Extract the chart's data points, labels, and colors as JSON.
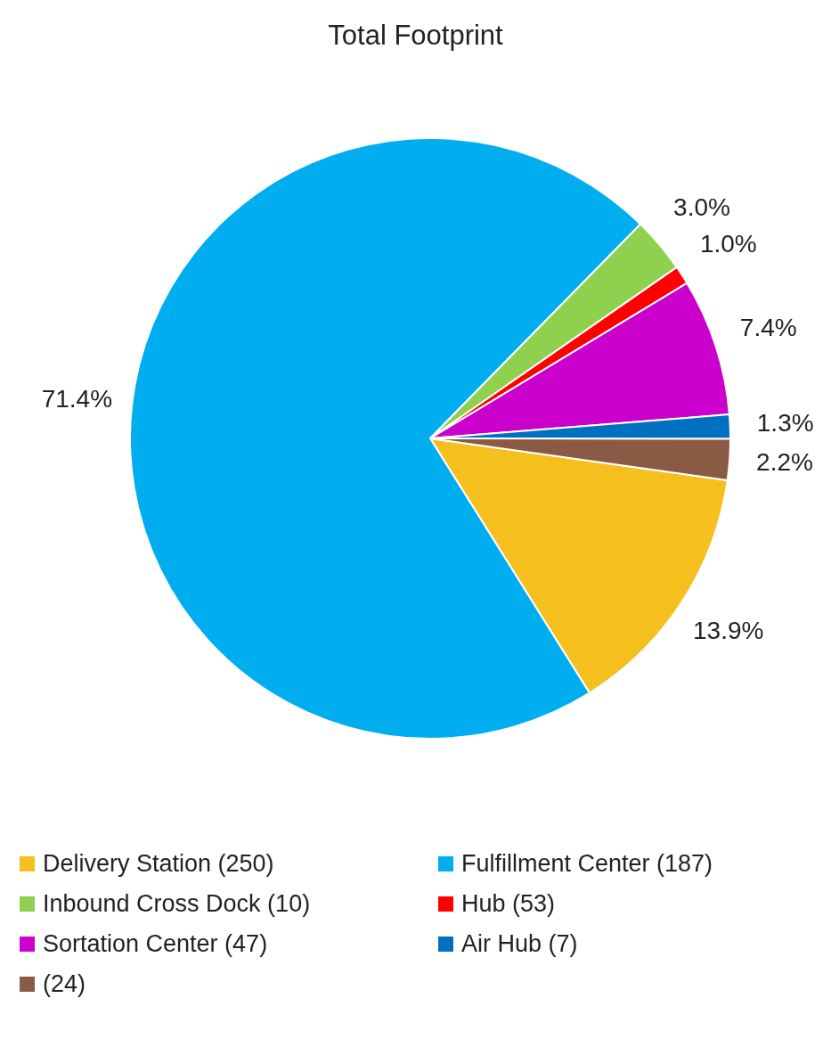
{
  "chart_data": {
    "type": "pie",
    "title": "Total Footprint",
    "categories": [
      "Delivery Station (250)",
      "Fulfillment Center (187)",
      "Inbound Cross Dock (10)",
      "Hub (53)",
      "Sortation Center (47)",
      "Air Hub (7)",
      "(24)"
    ],
    "values": [
      13.9,
      71.4,
      3.0,
      1.0,
      7.4,
      1.3,
      2.2
    ],
    "value_labels": [
      "13.9%",
      "71.4%",
      "3.0%",
      "1.0%",
      "7.4%",
      "1.3%",
      "2.2%"
    ],
    "colors": [
      "#f5c01e",
      "#00aeef",
      "#8fd14f",
      "#ff0000",
      "#cc00cc",
      "#0070c0",
      "#8b5a45"
    ],
    "legend": "bottom"
  }
}
